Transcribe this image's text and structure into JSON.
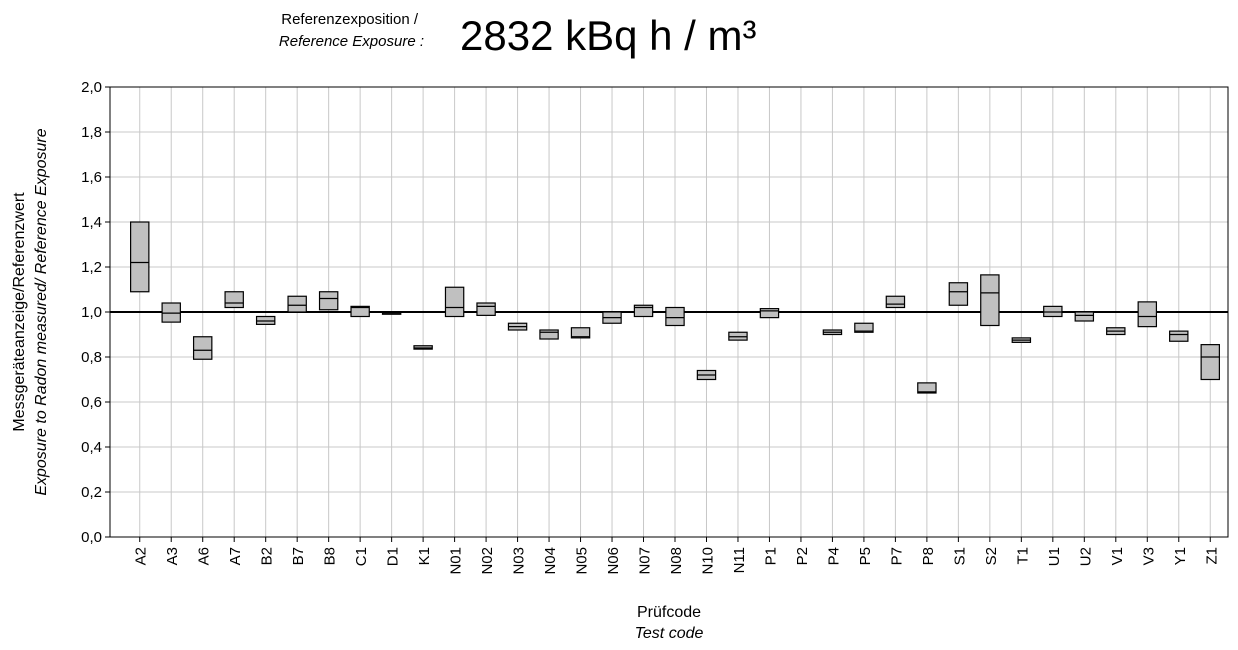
{
  "chart_data": {
    "type": "box",
    "title_prefix": [
      "Referenzexposition /",
      "Reference Exposure :"
    ],
    "title": "2832 kBq h / m³",
    "y_label": [
      "Messgeräteanzeige/Referenzwert",
      "Exposure to Radon measured/ Reference Exposure"
    ],
    "x_label": [
      "Prüfcode",
      "Test code"
    ],
    "categories": [
      "A2",
      "A3",
      "A6",
      "A7",
      "B2",
      "B7",
      "B8",
      "C1",
      "D1",
      "K1",
      "N01",
      "N02",
      "N03",
      "N04",
      "N05",
      "N06",
      "N07",
      "N08",
      "N10",
      "N11",
      "P1",
      "P2",
      "P4",
      "P5",
      "P7",
      "P8",
      "S1",
      "S2",
      "T1",
      "U1",
      "U2",
      "V1",
      "V3",
      "Y1",
      "Z1"
    ],
    "low": [
      1.09,
      0.955,
      0.79,
      1.02,
      0.945,
      1.0,
      1.01,
      0.98,
      0.99,
      0.835,
      0.98,
      0.985,
      0.92,
      0.88,
      0.885,
      0.95,
      0.98,
      0.94,
      0.7,
      0.875,
      0.975,
      null,
      0.9,
      0.91,
      1.02,
      0.64,
      1.03,
      0.94,
      0.865,
      0.98,
      0.96,
      0.9,
      0.935,
      0.87,
      0.7
    ],
    "median": [
      1.22,
      0.995,
      0.83,
      1.04,
      0.96,
      1.03,
      1.06,
      1.02,
      0.995,
      0.84,
      1.02,
      1.025,
      0.935,
      0.91,
      0.89,
      0.975,
      1.02,
      0.975,
      0.72,
      0.89,
      1.005,
      null,
      0.91,
      0.915,
      1.035,
      0.645,
      1.09,
      1.085,
      0.875,
      1.0,
      0.985,
      0.915,
      0.98,
      0.9,
      0.8
    ],
    "high": [
      1.4,
      1.04,
      0.89,
      1.09,
      0.98,
      1.07,
      1.09,
      1.025,
      1.0,
      0.85,
      1.11,
      1.04,
      0.95,
      0.92,
      0.93,
      1.0,
      1.03,
      1.02,
      0.74,
      0.91,
      1.015,
      null,
      0.92,
      0.95,
      1.07,
      0.685,
      1.13,
      1.165,
      0.885,
      1.025,
      1.0,
      0.93,
      1.045,
      0.915,
      0.855
    ],
    "color": "#c0c0c0",
    "reference_line": 1,
    "ylim": [
      0,
      2
    ],
    "yticks": [
      {
        "value": 0,
        "label": "0,0"
      },
      {
        "value": 0.2,
        "label": "0,2"
      },
      {
        "value": 0.4,
        "label": "0,4"
      },
      {
        "value": 0.6,
        "label": "0,6"
      },
      {
        "value": 0.8,
        "label": "0,8"
      },
      {
        "value": 1,
        "label": "1,0"
      },
      {
        "value": 1.2,
        "label": "1,2"
      },
      {
        "value": 1.4,
        "label": "1,4"
      },
      {
        "value": 1.6,
        "label": "1,6"
      },
      {
        "value": 1.8,
        "label": "1,8"
      },
      {
        "value": 2,
        "label": "2,0"
      }
    ],
    "grid": true
  }
}
